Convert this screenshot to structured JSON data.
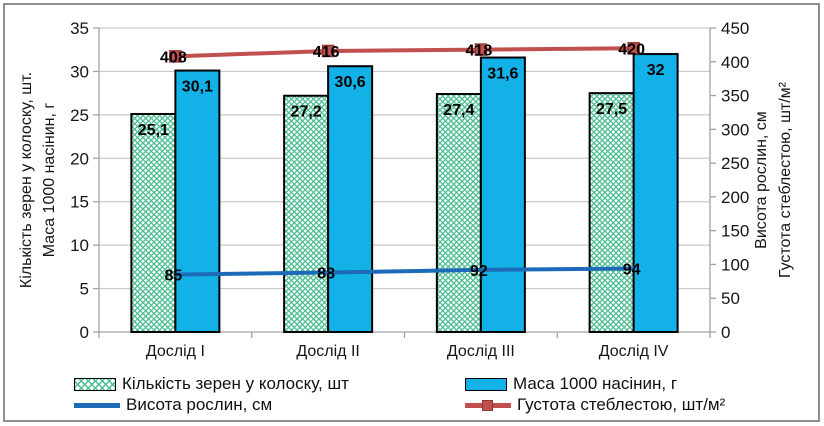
{
  "chart_data": {
    "type": "combo",
    "categories": [
      "Дослід I",
      "Дослід II",
      "Дослід III",
      "Дослід IV"
    ],
    "series": [
      {
        "name": "Кількість зерен у колоску, шт",
        "type": "bar",
        "axis": "left",
        "fill": "hatch-green",
        "values": [
          25.1,
          27.2,
          27.4,
          27.5
        ],
        "labels": [
          "25,1",
          "27,2",
          "27,4",
          "27,5"
        ]
      },
      {
        "name": "Маса 1000 насінин, г",
        "type": "bar",
        "axis": "left",
        "fill": "solid-cyan",
        "values": [
          30.1,
          30.6,
          31.6,
          32
        ],
        "labels": [
          "30,1",
          "30,6",
          "31,6",
          "32"
        ]
      },
      {
        "name": "Висота рослин, см",
        "type": "line",
        "axis": "right",
        "marker": "none",
        "values": [
          85,
          88,
          92,
          94
        ],
        "labels": [
          "85",
          "88",
          "92",
          "94"
        ]
      },
      {
        "name": "Густота стеблестою, шт/м²",
        "type": "line",
        "axis": "right",
        "marker": "square",
        "values": [
          408,
          416,
          418,
          420
        ],
        "labels": [
          "408",
          "416",
          "418",
          "420"
        ]
      }
    ],
    "left_axis": {
      "title_line1": "Кількість зерен у колоску, шт.",
      "title_line2": "Маса 1000 насінин, г",
      "min": 0,
      "max": 35,
      "step": 5
    },
    "right_axis": {
      "title_line1": "Висота рослин, см",
      "title_line2": "Густота стеблестою, шт/м²",
      "min": 0,
      "max": 450,
      "step": 50
    },
    "grid": true,
    "legend_position": "bottom",
    "colors": {
      "grain_hatch": "#4BBE90",
      "seed_mass": "#12B1E8",
      "plant_height_line": "#1D6BB8",
      "stem_density_line": "#C0504D",
      "stem_density_marker_border": "#943634",
      "bar_border": "#000000",
      "gridline": "#C9C9C9",
      "axis_line": "#A3A3A3",
      "frame_border": "#8F8F8F"
    }
  }
}
